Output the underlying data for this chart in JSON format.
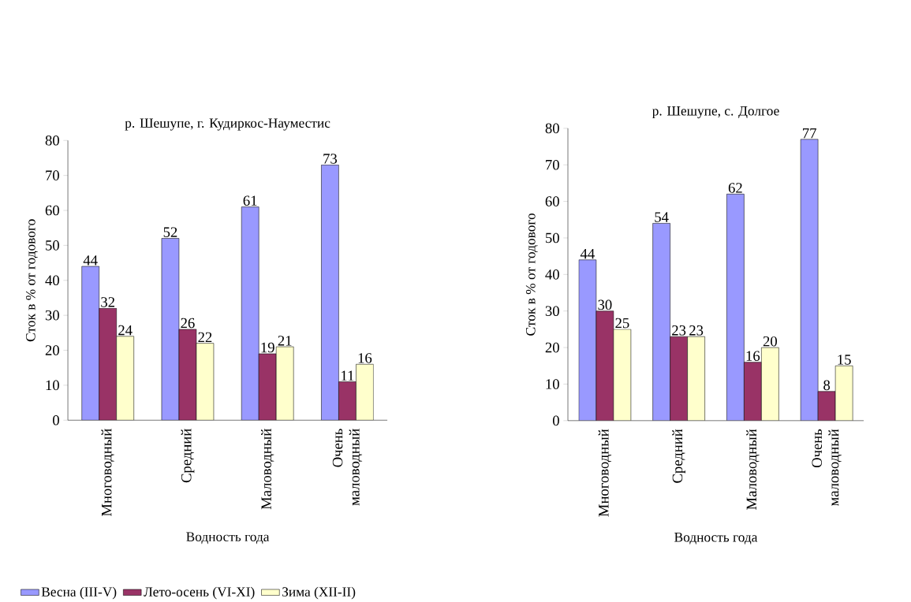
{
  "chart_data": [
    {
      "type": "bar",
      "title": "р. Шешупе, г. Кудиркос-Науместис",
      "xlabel": "Водность года",
      "ylabel": "Сток в % от годового",
      "categories": [
        "Многоводный",
        "Средний",
        "Маловодный",
        "Очень маловодный"
      ],
      "series": [
        {
          "name": "Весна (III-V)",
          "color": "#9999ff",
          "values": [
            44,
            52,
            61,
            73
          ]
        },
        {
          "name": "Лето-осень (VI-XI)",
          "color": "#993366",
          "values": [
            32,
            26,
            19,
            11
          ]
        },
        {
          "name": "Зима (XII-II)",
          "color": "#ffffcc",
          "values": [
            24,
            22,
            21,
            16
          ]
        }
      ],
      "ylim": [
        0,
        80
      ],
      "yticks": [
        0,
        10,
        20,
        30,
        40,
        50,
        60,
        70,
        80
      ],
      "data_labels": true,
      "legend": "bottom"
    },
    {
      "type": "bar",
      "title": "р. Шешупе, с. Долгое",
      "xlabel": "Водность года",
      "ylabel": "Сток в % от годового",
      "categories": [
        "Многоводный",
        "Средний",
        "Маловодный",
        "Очень маловодный"
      ],
      "series": [
        {
          "color": "#9999ff",
          "values": [
            44,
            54,
            62,
            77
          ]
        },
        {
          "color": "#993366",
          "values": [
            30,
            23,
            16,
            8
          ]
        },
        {
          "color": "#ffffcc",
          "values": [
            25,
            23,
            20,
            15
          ]
        }
      ],
      "ylim": [
        0,
        80
      ],
      "yticks": [
        0,
        10,
        20,
        30,
        40,
        50,
        60,
        70,
        80
      ],
      "data_labels": true,
      "legend": false
    }
  ]
}
